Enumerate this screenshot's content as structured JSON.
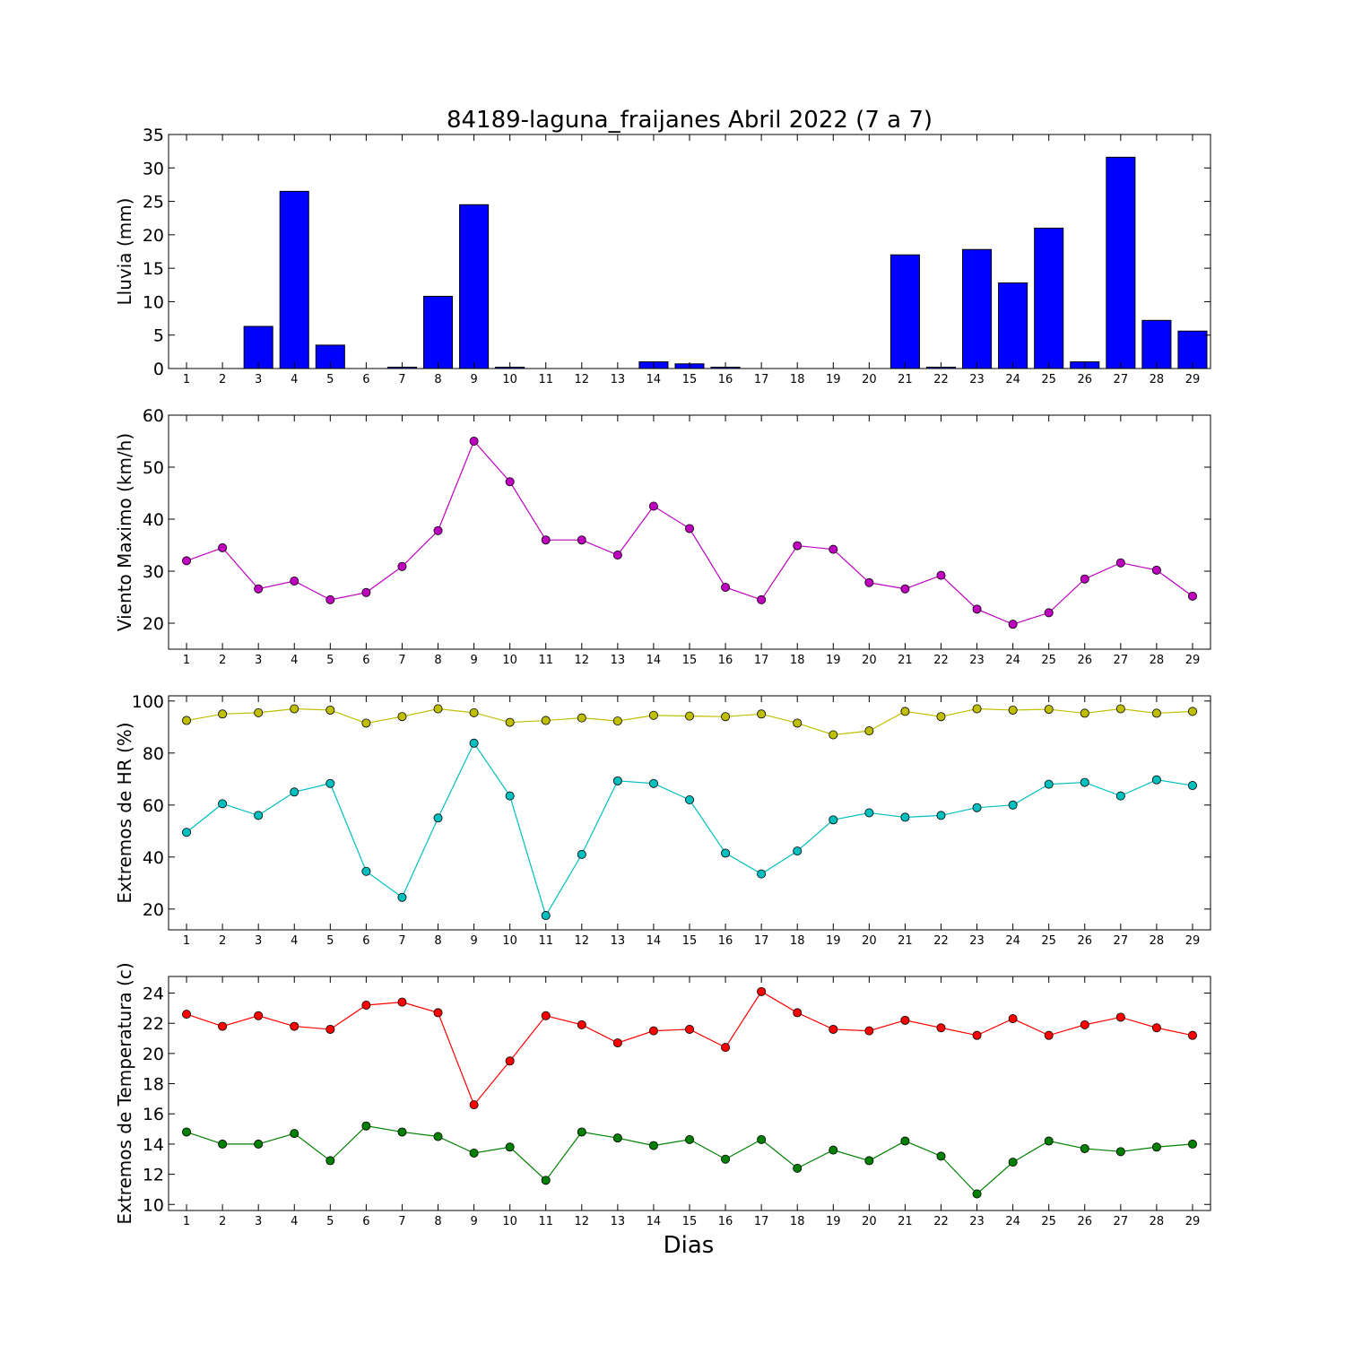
{
  "title": "84189-laguna_fraijanes Abril 2022  (7 a 7)",
  "xlabel": "Dias",
  "chart_data": [
    {
      "type": "bar",
      "ylabel": "Lluvia (mm)",
      "ylim": [
        0,
        35
      ],
      "yticks": [
        0,
        5,
        10,
        15,
        20,
        25,
        30,
        35
      ],
      "x": [
        1,
        2,
        3,
        4,
        5,
        6,
        7,
        8,
        9,
        10,
        11,
        12,
        13,
        14,
        15,
        16,
        17,
        18,
        19,
        20,
        21,
        22,
        23,
        24,
        25,
        26,
        27,
        28,
        29
      ],
      "series": [
        {
          "color": "#0000ff",
          "values": [
            0,
            0,
            6.3,
            26.5,
            3.5,
            0,
            0.2,
            10.8,
            24.5,
            0.2,
            0,
            0,
            0,
            1,
            0.7,
            0.2,
            0,
            0,
            0,
            0,
            17,
            0.2,
            17.8,
            12.8,
            21,
            1,
            31.6,
            7.2,
            5.6
          ]
        }
      ]
    },
    {
      "type": "line",
      "ylabel": "Viento Maximo (km/h)",
      "ylim": [
        15,
        60
      ],
      "yticks": [
        20,
        30,
        40,
        50,
        60
      ],
      "x": [
        1,
        2,
        3,
        4,
        5,
        6,
        7,
        8,
        9,
        10,
        11,
        12,
        13,
        14,
        15,
        16,
        17,
        18,
        19,
        20,
        21,
        22,
        23,
        24,
        25,
        26,
        27,
        28,
        29
      ],
      "series": [
        {
          "color": "#bf00bf",
          "values": [
            32,
            34.5,
            26.6,
            28.1,
            24.5,
            25.9,
            30.9,
            37.8,
            55,
            47.2,
            36,
            36,
            33.1,
            42.5,
            38.2,
            26.9,
            24.5,
            34.9,
            34.2,
            27.8,
            26.6,
            29.2,
            22.7,
            19.8,
            22,
            28.5,
            31.6,
            30.2,
            25.2
          ]
        }
      ]
    },
    {
      "type": "line",
      "ylabel": "Extremos de HR (%)",
      "ylim": [
        12,
        102
      ],
      "yticks": [
        20,
        40,
        60,
        80,
        100
      ],
      "x": [
        1,
        2,
        3,
        4,
        5,
        6,
        7,
        8,
        9,
        10,
        11,
        12,
        13,
        14,
        15,
        16,
        17,
        18,
        19,
        20,
        21,
        22,
        23,
        24,
        25,
        26,
        27,
        28,
        29
      ],
      "series": [
        {
          "color": "#bfbf00",
          "values": [
            92.5,
            95,
            95.5,
            97,
            96.5,
            91.5,
            94,
            97,
            95.5,
            91.8,
            92.5,
            93.5,
            92.3,
            94.5,
            94.2,
            94,
            95,
            91.5,
            87,
            88.5,
            96,
            94,
            97,
            96.5,
            96.8,
            95.3,
            97,
            95.3,
            96
          ]
        },
        {
          "color": "#00bfbf",
          "values": [
            49.5,
            60.5,
            56,
            65,
            68.3,
            34.5,
            24.5,
            55,
            83.8,
            63.5,
            17.5,
            41,
            69.3,
            68.3,
            62,
            41.5,
            33.5,
            42.3,
            54.3,
            57,
            55.3,
            56,
            59,
            60,
            68,
            68.7,
            63.5,
            69.7,
            67.5
          ]
        }
      ]
    },
    {
      "type": "line",
      "ylabel": "Extremos de Temperatura (c)",
      "ylim": [
        9.6,
        25.1
      ],
      "yticks": [
        10,
        12,
        14,
        16,
        18,
        20,
        22,
        24
      ],
      "x": [
        1,
        2,
        3,
        4,
        5,
        6,
        7,
        8,
        9,
        10,
        11,
        12,
        13,
        14,
        15,
        16,
        17,
        18,
        19,
        20,
        21,
        22,
        23,
        24,
        25,
        26,
        27,
        28,
        29
      ],
      "series": [
        {
          "color": "#ff0000",
          "values": [
            22.6,
            21.8,
            22.5,
            21.8,
            21.6,
            23.2,
            23.4,
            22.7,
            16.6,
            19.5,
            22.5,
            21.9,
            20.7,
            21.5,
            21.6,
            20.4,
            24.1,
            22.7,
            21.6,
            21.5,
            22.2,
            21.7,
            21.2,
            22.3,
            21.2,
            21.9,
            22.4,
            21.7,
            21.2
          ]
        },
        {
          "color": "#008000",
          "values": [
            14.8,
            14,
            14,
            14.7,
            12.9,
            15.2,
            14.8,
            14.5,
            13.4,
            13.8,
            11.6,
            14.8,
            14.4,
            13.9,
            14.3,
            13,
            14.3,
            12.4,
            13.6,
            12.9,
            14.2,
            13.2,
            10.7,
            12.8,
            14.2,
            13.7,
            13.5,
            13.8,
            14
          ]
        }
      ]
    }
  ]
}
